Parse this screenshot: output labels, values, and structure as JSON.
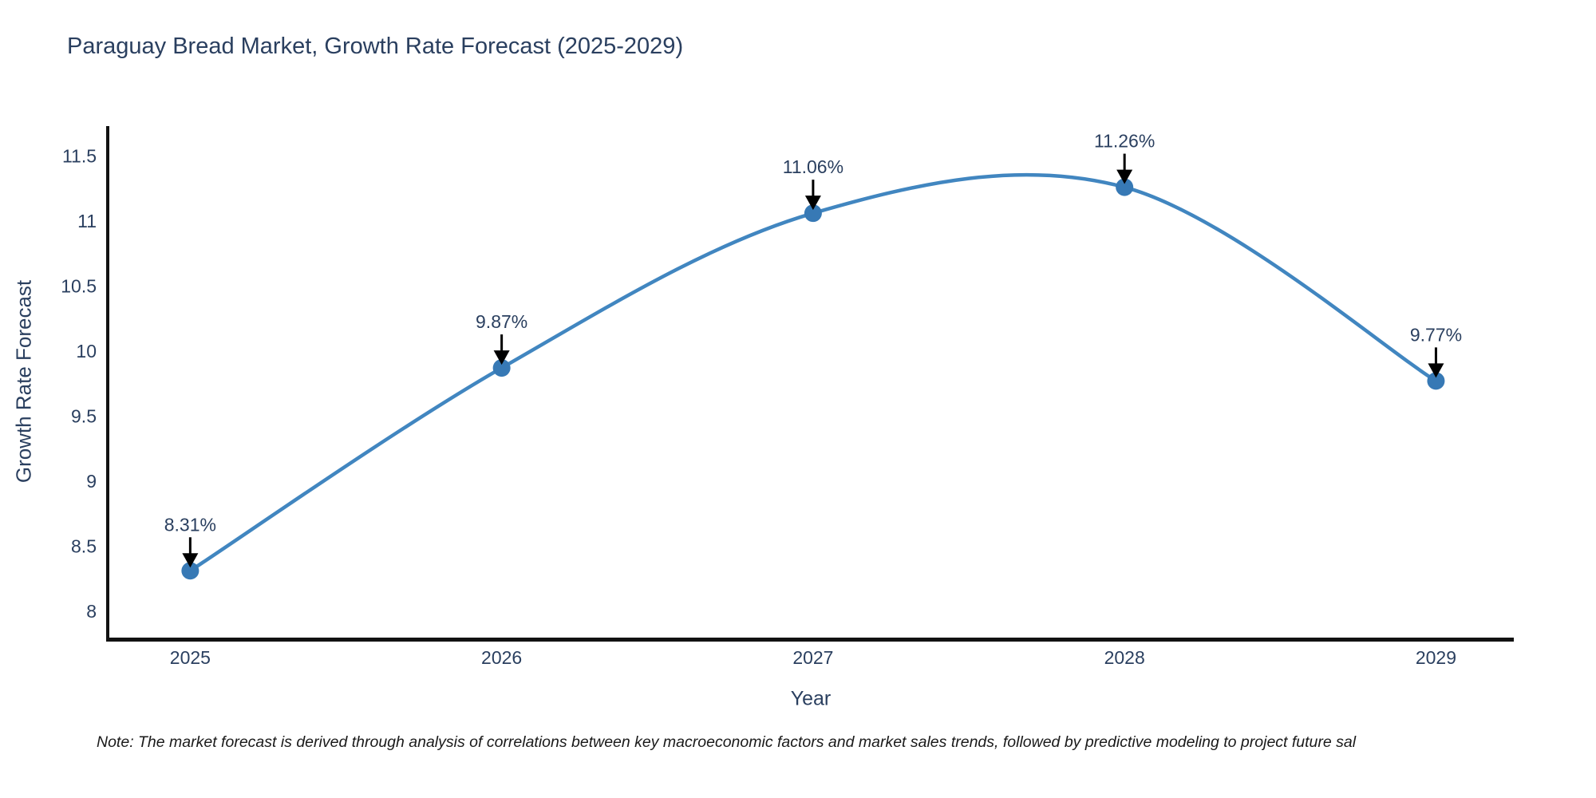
{
  "chart": {
    "title": "Paraguay Bread Market, Growth Rate Forecast (2025-2029)",
    "xlabel": "Year",
    "ylabel": "Growth Rate Forecast",
    "note": "Note: The market forecast is derived through analysis of correlations between key macroeconomic factors and market sales trends, followed by predictive modeling to project future sal"
  },
  "chart_data": {
    "type": "line",
    "title": "Paraguay Bread Market, Growth Rate Forecast (2025-2029)",
    "xlabel": "Year",
    "ylabel": "Growth Rate Forecast",
    "x": [
      2025,
      2026,
      2027,
      2028,
      2029
    ],
    "values": [
      8.31,
      9.87,
      11.06,
      11.26,
      9.77
    ],
    "point_labels": [
      "8.31%",
      "9.87%",
      "11.06%",
      "11.26%",
      "9.77%"
    ],
    "x_ticks": [
      "2025",
      "2026",
      "2027",
      "2028",
      "2029"
    ],
    "y_ticks": [
      "11.5",
      "11",
      "10.5",
      "10",
      "9.5",
      "9",
      "8.5",
      "8"
    ],
    "xlim": [
      2024.73,
      2029.25
    ],
    "ylim": [
      7.79,
      11.73
    ],
    "line_shape": "spline",
    "grid": false,
    "legend": "none",
    "annotations_have_arrows": true,
    "colors": {
      "line": "#4186c0",
      "marker": "#3779b5",
      "axis": "#121212",
      "tick_text": "#2a3f5f",
      "annotation_text": "#2a3f5f",
      "arrow": "#000000"
    }
  }
}
